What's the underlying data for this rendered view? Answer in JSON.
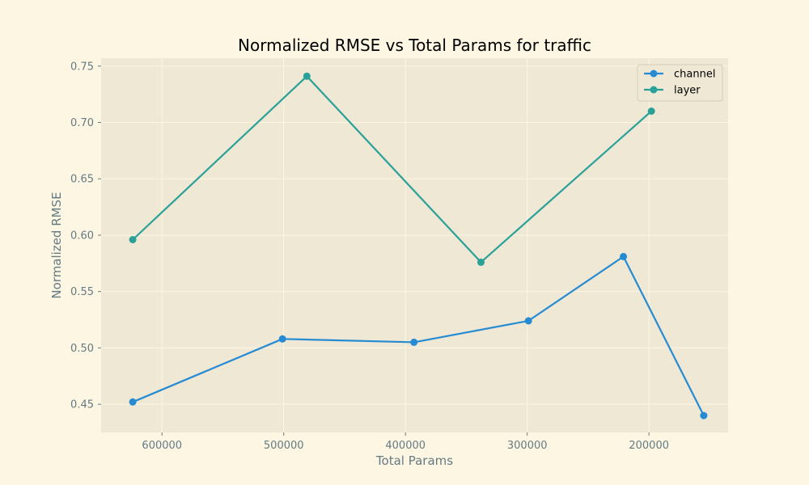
{
  "chart_data": {
    "type": "line",
    "title": "Normalized RMSE vs Total Params for traffic",
    "xlabel": "Total Params",
    "ylabel": "Normalized RMSE",
    "xlim": [
      650000,
      135000
    ],
    "ylim": [
      0.425,
      0.757
    ],
    "x_inverted": true,
    "grid": true,
    "legend_position": "top-right",
    "xticks": [
      600000,
      500000,
      400000,
      300000,
      200000
    ],
    "yticks": [
      0.45,
      0.5,
      0.55,
      0.6,
      0.65,
      0.7,
      0.75
    ],
    "xtick_labels": [
      "600000",
      "500000",
      "400000",
      "300000",
      "200000"
    ],
    "ytick_labels": [
      "0.45",
      "0.50",
      "0.55",
      "0.60",
      "0.65",
      "0.70",
      "0.75"
    ],
    "series": [
      {
        "name": "channel",
        "color": "#268bd2",
        "x": [
          624000,
          501000,
          393000,
          299000,
          221000,
          155000
        ],
        "y": [
          0.452,
          0.508,
          0.505,
          0.524,
          0.581,
          0.44
        ]
      },
      {
        "name": "layer",
        "color": "#2aa198",
        "x": [
          624000,
          481000,
          338000,
          198000
        ],
        "y": [
          0.596,
          0.741,
          0.576,
          0.71
        ]
      }
    ]
  },
  "colors": {
    "figure_background": "#fdf6e3",
    "plot_background": "#eee8d5",
    "grid": "#fdf6e3",
    "text": "#657b83"
  }
}
